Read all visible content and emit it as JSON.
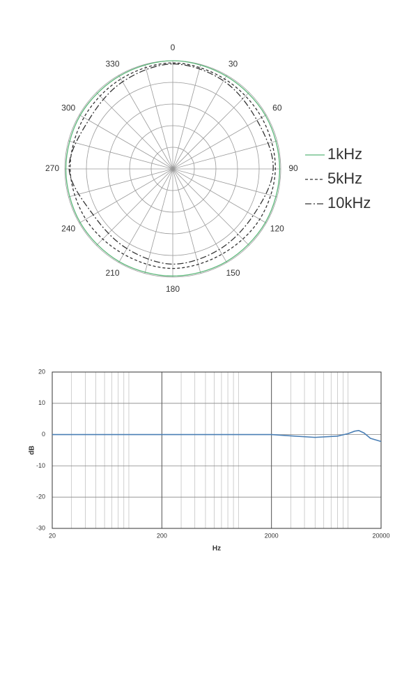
{
  "chart_data": [
    {
      "type": "polar",
      "theta": [
        0,
        30,
        60,
        90,
        120,
        150,
        180,
        210,
        240,
        270,
        300,
        330
      ],
      "rlim": [
        0,
        1
      ],
      "rticks": [
        0.2,
        0.4,
        0.6,
        0.8,
        1
      ],
      "grid": true,
      "legend": "right",
      "series": [
        {
          "name": "1kHz",
          "color": "#5cb87a",
          "dash": "solid",
          "values": [
            1,
            0.99,
            0.99,
            0.99,
            0.99,
            0.99,
            0.99,
            0.99,
            0.99,
            0.99,
            0.99,
            0.99
          ]
        },
        {
          "name": "5kHz",
          "color": "#333333",
          "dash": "dashed",
          "values": [
            0.98,
            0.96,
            0.95,
            0.95,
            0.93,
            0.91,
            0.92,
            0.91,
            0.93,
            0.95,
            0.95,
            0.96
          ]
        },
        {
          "name": "10kHz",
          "color": "#333333",
          "dash": "dashdot",
          "values": [
            0.97,
            0.94,
            0.9,
            0.93,
            0.86,
            0.86,
            0.88,
            0.85,
            0.85,
            0.96,
            0.9,
            0.93
          ]
        }
      ]
    },
    {
      "type": "line",
      "xlabel": "Hz",
      "ylabel": "dB",
      "log_x": true,
      "grid": true,
      "xlim": [
        20,
        20000
      ],
      "xticks": [
        20,
        200,
        2000,
        20000
      ],
      "ylim": [
        -30,
        20
      ],
      "yticks": [
        20,
        10,
        0,
        -10,
        -20,
        -30
      ],
      "series": [
        {
          "color": "#4a7fb5",
          "x": [
            20,
            2000,
            3000,
            5000,
            8000,
            10000,
            11500,
            12500,
            14000,
            16000,
            20000
          ],
          "values": [
            0,
            0,
            -0.4,
            -0.9,
            -0.5,
            0.3,
            1.1,
            1.3,
            0.5,
            -1.2,
            -2.2
          ]
        }
      ]
    }
  ]
}
